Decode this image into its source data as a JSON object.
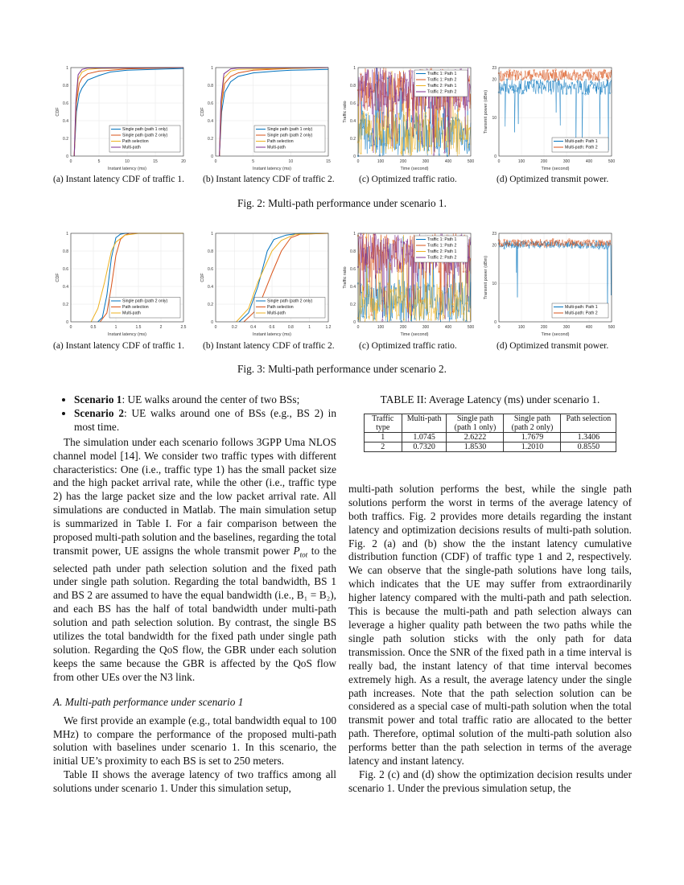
{
  "colors": {
    "blue": "#0072BD",
    "orange": "#D95319",
    "yellow": "#EDB120",
    "purple": "#7E2F8E"
  },
  "chart_data": [
    {
      "id": "fig2a",
      "type": "line",
      "xlabel": "Instant latency (ms)",
      "ylabel": "CDF",
      "xlim": [
        0,
        20
      ],
      "ylim": [
        0,
        1
      ],
      "xticks": [
        0,
        5,
        10,
        15,
        20
      ],
      "yticks": [
        0,
        0.2,
        0.4,
        0.6,
        0.8,
        1
      ],
      "grid": true,
      "legend": "bottom-right",
      "series": [
        {
          "name": "Single path (path 1 only)",
          "color": "#0072BD",
          "points": [
            [
              0.6,
              0
            ],
            [
              1,
              0.5
            ],
            [
              1.5,
              0.7
            ],
            [
              2,
              0.77
            ],
            [
              3,
              0.86
            ],
            [
              5,
              0.91
            ],
            [
              7,
              0.95
            ],
            [
              10,
              0.97
            ],
            [
              20,
              0.99
            ]
          ]
        },
        {
          "name": "Single path (path 2 only)",
          "color": "#D95319",
          "points": [
            [
              0.6,
              0
            ],
            [
              1,
              0.6
            ],
            [
              1.5,
              0.82
            ],
            [
              2,
              0.88
            ],
            [
              3,
              0.93
            ],
            [
              5,
              0.96
            ],
            [
              10,
              0.985
            ],
            [
              20,
              1
            ]
          ]
        },
        {
          "name": "Path selection",
          "color": "#EDB120",
          "points": [
            [
              0.6,
              0
            ],
            [
              0.9,
              0.55
            ],
            [
              1.3,
              0.87
            ],
            [
              2,
              0.95
            ],
            [
              3,
              0.98
            ],
            [
              5,
              0.99
            ],
            [
              20,
              1
            ]
          ]
        },
        {
          "name": "Multi-path",
          "color": "#7E2F8E",
          "points": [
            [
              0.6,
              0
            ],
            [
              0.9,
              0.62
            ],
            [
              1.3,
              0.92
            ],
            [
              2,
              0.98
            ],
            [
              3,
              0.995
            ],
            [
              20,
              1
            ]
          ]
        }
      ]
    },
    {
      "id": "fig2b",
      "type": "line",
      "xlabel": "Instant latency (ms)",
      "ylabel": "CDF",
      "xlim": [
        0,
        15
      ],
      "ylim": [
        0,
        1
      ],
      "xticks": [
        0,
        5,
        10,
        15
      ],
      "yticks": [
        0,
        0.2,
        0.4,
        0.6,
        0.8,
        1
      ],
      "grid": true,
      "legend": "bottom-right",
      "series": [
        {
          "name": "Single path (path 1 only)",
          "color": "#0072BD",
          "points": [
            [
              0.5,
              0
            ],
            [
              0.8,
              0.5
            ],
            [
              1.2,
              0.72
            ],
            [
              2,
              0.84
            ],
            [
              3,
              0.9
            ],
            [
              5,
              0.94
            ],
            [
              8,
              0.96
            ],
            [
              10,
              0.97
            ],
            [
              15,
              0.98
            ]
          ]
        },
        {
          "name": "Single path (path 2 only)",
          "color": "#D95319",
          "points": [
            [
              0.5,
              0
            ],
            [
              0.8,
              0.6
            ],
            [
              1.2,
              0.82
            ],
            [
              2,
              0.9
            ],
            [
              3,
              0.94
            ],
            [
              5,
              0.97
            ],
            [
              10,
              0.99
            ],
            [
              15,
              1
            ]
          ]
        },
        {
          "name": "Path selection",
          "color": "#EDB120",
          "points": [
            [
              0.5,
              0
            ],
            [
              0.7,
              0.55
            ],
            [
              1.1,
              0.88
            ],
            [
              2,
              0.96
            ],
            [
              3,
              0.98
            ],
            [
              15,
              1
            ]
          ]
        },
        {
          "name": "Multi-path",
          "color": "#7E2F8E",
          "points": [
            [
              0.5,
              0
            ],
            [
              0.7,
              0.62
            ],
            [
              1.1,
              0.93
            ],
            [
              2,
              0.985
            ],
            [
              3,
              0.995
            ],
            [
              15,
              1
            ]
          ]
        }
      ]
    },
    {
      "id": "fig2c",
      "type": "line",
      "xlabel": "Time (second)",
      "ylabel": "Traffic ratio",
      "xlim": [
        0,
        500
      ],
      "ylim": [
        0,
        1
      ],
      "xticks": [
        0,
        100,
        200,
        300,
        400,
        500
      ],
      "yticks": [
        0,
        0.2,
        0.4,
        0.6,
        0.8,
        1
      ],
      "grid": true,
      "legend": "top-right",
      "series": [
        {
          "name": "Traffic 1: Path 1",
          "color": "#0072BD",
          "typical_range": [
            0,
            0.5
          ]
        },
        {
          "name": "Traffic 1: Path 2",
          "color": "#D95319",
          "typical_range": [
            0.5,
            1
          ]
        },
        {
          "name": "Traffic 2: Path 1",
          "color": "#EDB120",
          "typical_range": [
            0,
            0.5
          ]
        },
        {
          "name": "Traffic 2: Path 2",
          "color": "#7E2F8E",
          "typical_range": [
            0.5,
            1
          ]
        }
      ]
    },
    {
      "id": "fig2d",
      "type": "line",
      "xlabel": "Time (second)",
      "ylabel": "Transmit power (dBm)",
      "xlim": [
        0,
        500
      ],
      "ylim": [
        0,
        23
      ],
      "xticks": [
        0,
        100,
        200,
        300,
        400,
        500
      ],
      "yticks": [
        0,
        10,
        20,
        23
      ],
      "grid": true,
      "legend": "bottom-right",
      "series": [
        {
          "name": "Multi-path: Path 1",
          "color": "#0072BD",
          "typical_range": [
            16,
            20
          ]
        },
        {
          "name": "Multi-path: Path 2",
          "color": "#D95319",
          "typical_range": [
            19.5,
            22.5
          ]
        }
      ]
    },
    {
      "id": "fig3a",
      "type": "line",
      "xlabel": "Instant latency (ms)",
      "ylabel": "CDF",
      "xlim": [
        0,
        2.5
      ],
      "ylim": [
        0,
        1
      ],
      "xticks": [
        0,
        0.5,
        1,
        1.5,
        2,
        2.5
      ],
      "yticks": [
        0,
        0.2,
        0.4,
        0.6,
        0.8,
        1
      ],
      "grid": true,
      "legend": "bottom-right",
      "series": [
        {
          "name": "Single path (path 2 only)",
          "color": "#0072BD",
          "points": [
            [
              0.6,
              0
            ],
            [
              0.7,
              0.05
            ],
            [
              0.8,
              0.3
            ],
            [
              0.9,
              0.72
            ],
            [
              1,
              0.95
            ],
            [
              1.1,
              0.99
            ],
            [
              1.2,
              1
            ],
            [
              2.5,
              1
            ]
          ]
        },
        {
          "name": "Path selection",
          "color": "#D95319",
          "points": [
            [
              0.65,
              0
            ],
            [
              0.8,
              0.1
            ],
            [
              0.9,
              0.4
            ],
            [
              1,
              0.75
            ],
            [
              1.1,
              0.93
            ],
            [
              1.2,
              0.98
            ],
            [
              1.3,
              1
            ],
            [
              2.5,
              1
            ]
          ]
        },
        {
          "name": "Multi-path",
          "color": "#EDB120",
          "points": [
            [
              0.45,
              0
            ],
            [
              0.6,
              0.15
            ],
            [
              0.75,
              0.45
            ],
            [
              0.9,
              0.8
            ],
            [
              1,
              0.9
            ],
            [
              1.2,
              0.98
            ],
            [
              1.5,
              1
            ],
            [
              2.5,
              1
            ]
          ]
        }
      ]
    },
    {
      "id": "fig3b",
      "type": "line",
      "xlabel": "Instant latency (ms)",
      "ylabel": "CDF",
      "xlim": [
        0,
        1.2
      ],
      "ylim": [
        0,
        1
      ],
      "xticks": [
        0,
        0.2,
        0.4,
        0.6,
        0.8,
        1,
        1.2
      ],
      "yticks": [
        0,
        0.2,
        0.4,
        0.6,
        0.8,
        1
      ],
      "grid": true,
      "legend": "bottom-right",
      "series": [
        {
          "name": "Single path (path 2 only)",
          "color": "#0072BD",
          "points": [
            [
              0.25,
              0
            ],
            [
              0.35,
              0.1
            ],
            [
              0.45,
              0.4
            ],
            [
              0.55,
              0.8
            ],
            [
              0.62,
              0.93
            ],
            [
              0.75,
              0.98
            ],
            [
              0.9,
              1
            ],
            [
              1.2,
              1
            ]
          ]
        },
        {
          "name": "Path selection",
          "color": "#D95319",
          "points": [
            [
              0.3,
              0
            ],
            [
              0.45,
              0.15
            ],
            [
              0.6,
              0.55
            ],
            [
              0.7,
              0.8
            ],
            [
              0.8,
              0.95
            ],
            [
              0.9,
              0.99
            ],
            [
              1.2,
              1
            ]
          ]
        },
        {
          "name": "Multi-path",
          "color": "#EDB120",
          "points": [
            [
              0.22,
              0
            ],
            [
              0.35,
              0.15
            ],
            [
              0.45,
              0.45
            ],
            [
              0.6,
              0.8
            ],
            [
              0.7,
              0.92
            ],
            [
              0.85,
              0.99
            ],
            [
              1.2,
              1
            ]
          ]
        }
      ]
    },
    {
      "id": "fig3c",
      "type": "line",
      "xlabel": "Time (second)",
      "ylabel": "Traffic ratio",
      "xlim": [
        0,
        500
      ],
      "ylim": [
        0,
        1
      ],
      "xticks": [
        0,
        100,
        200,
        300,
        400,
        500
      ],
      "yticks": [
        0,
        0.2,
        0.4,
        0.6,
        0.8,
        1
      ],
      "grid": true,
      "legend": "top-right",
      "series": [
        {
          "name": "Traffic 1: Path 1",
          "color": "#0072BD",
          "typical_range": [
            0,
            0.45
          ]
        },
        {
          "name": "Traffic 1: Path 2",
          "color": "#D95319",
          "typical_range": [
            0.55,
            1
          ]
        },
        {
          "name": "Traffic 2: Path 1",
          "color": "#EDB120",
          "typical_range": [
            0,
            0.45
          ]
        },
        {
          "name": "Traffic 2: Path 2",
          "color": "#7E2F8E",
          "typical_range": [
            0.55,
            1
          ]
        }
      ]
    },
    {
      "id": "fig3d",
      "type": "line",
      "xlabel": "Time (second)",
      "ylabel": "Transmit power (dBm)",
      "xlim": [
        0,
        500
      ],
      "ylim": [
        0,
        23
      ],
      "xticks": [
        0,
        100,
        200,
        300,
        400,
        500
      ],
      "yticks": [
        0,
        10,
        20,
        23
      ],
      "grid": true,
      "legend": "bottom-right",
      "series": [
        {
          "name": "Multi-path: Path 1",
          "color": "#0072BD",
          "typical_range": [
            19,
            21
          ]
        },
        {
          "name": "Multi-path: Path 2",
          "color": "#D95319",
          "typical_range": [
            19.5,
            21.5
          ]
        }
      ]
    }
  ],
  "fig2": {
    "subcaps": [
      "(a) Instant latency CDF of traffic 1.",
      "(b) Instant latency CDF of traffic 2.",
      "(c) Optimized traffic ratio.",
      "(d) Optimized transmit power."
    ],
    "caption": "Fig. 2: Multi-path performance under scenario 1."
  },
  "fig3": {
    "subcaps": [
      "(a) Instant latency CDF of traffic 1.",
      "(b) Instant latency CDF of traffic 2.",
      "(c) Optimized traffic ratio.",
      "(d) Optimized transmit power."
    ],
    "caption": "Fig. 3: Multi-path performance under scenario 2."
  },
  "left": {
    "bullets": [
      {
        "bold": "Scenario 1",
        "text": ": UE walks around the center of two BSs;"
      },
      {
        "bold": "Scenario 2",
        "text": ": UE walks around one of BSs (e.g., BS 2) in most time."
      }
    ],
    "p1a": "The simulation under each scenario follows 3GPP Uma NLOS channel model [14]. We consider two traffic types with different characteristics: One (i.e., traffic type 1) has the small packet size and the high packet arrival rate, while the other (i.e., traffic type 2) has the large packet size and the low packet arrival rate. All simulations are conducted in Matlab. The main simulation setup is summarized in Table I. For a fair comparison between the proposed multi-path solution and the baselines, regarding the total transmit power, UE assigns the whole transmit power ",
    "p1_math": "P",
    "p1_sub": "tot",
    "p1b": " to the selected path under path selection solution and the fixed path under single path solution. Regarding the total bandwidth, BS 1 and BS 2 are assumed to have the equal bandwidth (i.e., B₁ = B₂), and each BS has the half of total bandwidth under multi-path solution and path selection solution. By contrast, the single BS utilizes the total bandwidth for the fixed path under single path solution. Regarding the QoS flow, the GBR under each solution keeps the same because the GBR is affected by the QoS flow from other UEs over the N3 link.",
    "section": "A. Multi-path performance under scenario 1",
    "p2": "We first provide an example (e.g., total bandwidth equal to 100 MHz) to compare the performance of the proposed multi-path solution with baselines under scenario 1. In this scenario, the initial UE’s proximity to each BS is set to 250 meters.",
    "p3": "Table II shows the average latency of two traffics among all solutions under scenario 1. Under this simulation setup,"
  },
  "table": {
    "caption": "TABLE II: Average Latency (ms) under scenario 1.",
    "headers": [
      "Traffic type",
      "Multi-path",
      "Single path (path 1 only)",
      "Single path (path 2 only)",
      "Path selection"
    ],
    "rows": [
      [
        "1",
        "1.0745",
        "2.6222",
        "1.7679",
        "1.3406"
      ],
      [
        "2",
        "0.7320",
        "1.8530",
        "1.2010",
        "0.8550"
      ]
    ]
  },
  "right": {
    "p1": "multi-path solution performs the best, while the single path solutions perform the worst in terms of the average latency of both traffics. Fig. 2 provides more details regarding the instant latency and optimization decisions results of multi-path solution. Fig. 2 (a) and (b) show the the instant latency cumulative distribution function (CDF) of traffic type 1 and 2, respectively. We can observe that the single-path solutions have long tails, which indicates that the UE may suffer from extraordinarily higher latency compared with the multi-path and path selection. This is because the multi-path and path selection always can leverage a higher quality path between the two paths while the single path solution sticks with the only path for data transmission. Once the SNR of the fixed path in a time interval is really bad, the instant latency of that time interval becomes extremely high. As a result, the average latency under the single path increases. Note that the path selection solution can be considered as a special case of multi-path solution when the total transmit power and total traffic ratio are allocated to the better path. Therefore, optimal solution of the multi-path solution also performs better than the path selection in terms of the average latency and instant latency.",
    "p2": "Fig. 2 (c) and (d) show the optimization decision results under scenario 1. Under the previous simulation setup, the"
  }
}
